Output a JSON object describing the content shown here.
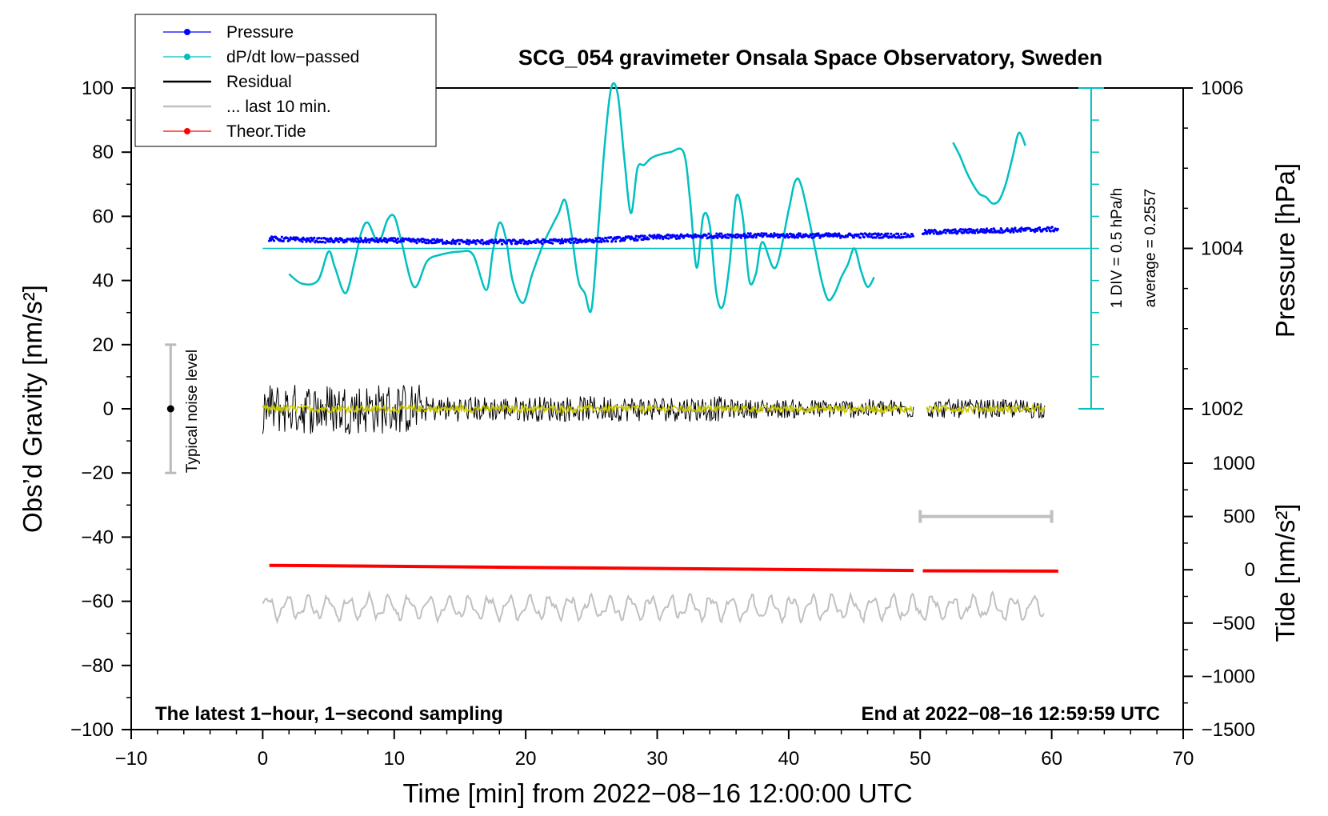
{
  "chart_data": {
    "type": "line",
    "title": "SCG_054 gravimeter Onsala Space Observatory, Sweden",
    "xlabel": "Time [min] from 2022−08−16 12:00:00 UTC",
    "ylabel_left": "Obs’d Gravity [nm/s²]",
    "ylabel_right_pressure": "Pressure [hPa]",
    "ylabel_right_tide": "Tide [nm/s²]",
    "xlim": [
      -10,
      70
    ],
    "ylim": [
      -100,
      100
    ],
    "x_ticks": [
      -10,
      0,
      10,
      20,
      30,
      40,
      50,
      60,
      70
    ],
    "x_tick_labels": [
      "−10",
      "0",
      "10",
      "20",
      "30",
      "40",
      "50",
      "60",
      "70"
    ],
    "y_ticks": [
      -100,
      -80,
      -60,
      -40,
      -20,
      0,
      20,
      40,
      60,
      80,
      100
    ],
    "y_tick_labels": [
      "−100",
      "−80",
      "−60",
      "−40",
      "−20",
      "0",
      "20",
      "40",
      "60",
      "80",
      "100"
    ],
    "pressure_axis": {
      "ticks": [
        1002,
        1004,
        1006
      ],
      "tick_labels": [
        "1002",
        "1004",
        "1006"
      ],
      "gravity_equivalent_per_hpa": 25
    },
    "tide_axis": {
      "ticks": [
        1000,
        500,
        0,
        -500,
        -1000,
        -1500
      ],
      "tick_labels": [
        "1000",
        "500",
        "0",
        "−500",
        "−1000",
        "−1500"
      ],
      "range": [
        -1500,
        1000
      ]
    },
    "legend": [
      {
        "name": "Pressure",
        "color": "#0000ff",
        "style": "line-dot"
      },
      {
        "name": "dP/dt low−passed",
        "color": "#00c0c0",
        "style": "line-dot"
      },
      {
        "name": "Residual",
        "color": "#000000",
        "style": "line"
      },
      {
        "name": "... last 10 min.",
        "color": "#c0c0c0",
        "style": "line"
      },
      {
        "name": "Theor.Tide",
        "color": "#ff0000",
        "style": "line-dot"
      }
    ],
    "series": [
      {
        "name": "dP/dt low−passed",
        "color": "#00c0c0",
        "segments": [
          {
            "x": [
              2,
              3,
              4.2,
              5,
              5.5,
              6.3,
              7,
              7.5,
              8,
              8.8,
              9.5,
              10,
              10.5,
              11.5,
              12.5,
              13.5,
              15,
              16,
              17,
              17.5,
              18,
              18.5,
              19,
              19.8,
              20.5,
              21.3,
              22,
              22.5,
              23,
              23.5,
              24,
              24.5,
              25,
              25.5,
              26,
              26.5,
              27,
              27.5,
              28,
              28.5,
              29,
              29.5,
              30,
              31,
              32,
              32.5,
              33,
              33.5,
              34,
              34.5,
              35,
              35.5,
              36,
              36.5,
              37,
              37.5,
              38,
              39,
              40,
              40.5,
              41,
              42,
              42.5,
              43,
              43.5,
              44,
              44.5,
              45,
              45.5,
              46,
              46.5
            ],
            "y": [
              42,
              39,
              40,
              49,
              44,
              36,
              46,
              55,
              58,
              52,
              59,
              60,
              53,
              38,
              46,
              48,
              49,
              48,
              37,
              49,
              58,
              53,
              40,
              33,
              42,
              51,
              57,
              61,
              65,
              54,
              40,
              36,
              31,
              55,
              82,
              100,
              98,
              78,
              61,
              75,
              76,
              78,
              79,
              80,
              80,
              65,
              44,
              60,
              57,
              36,
              32,
              45,
              66,
              60,
              40,
              42,
              52,
              44,
              62,
              71,
              69,
              50,
              40,
              34,
              36,
              41,
              45,
              50,
              43,
              38,
              41
            ]
          },
          {
            "x": [
              52.5,
              53,
              53.5,
              54,
              54.5,
              55,
              55.5,
              56,
              56.5,
              57,
              57.5,
              58
            ],
            "y": [
              83,
              79,
              74,
              70,
              67,
              66,
              64,
              65,
              70,
              78,
              86,
              82
            ]
          }
        ]
      },
      {
        "name": "Pressure",
        "color": "#0000ff",
        "x": [
          0.5,
          5,
          10,
          15,
          20,
          25,
          30,
          35,
          40,
          45,
          49.5
        ],
        "y": [
          53,
          52.5,
          52.5,
          52,
          52,
          52.5,
          53.5,
          54,
          54,
          54,
          54
        ],
        "x2": [
          50.2,
          55,
          60.5
        ],
        "y2": [
          55,
          55.5,
          56
        ]
      },
      {
        "name": "Residual",
        "color": "#000000",
        "span": [
          0,
          49.5
        ],
        "span2": [
          50.5,
          59.5
        ],
        "noise_amplitude": [
          8,
          4,
          3
        ]
      },
      {
        "name": "Theor.Tide",
        "color": "#ff0000",
        "x": [
          0.5,
          49.5
        ],
        "y": [
          -48.8,
          -50.4
        ],
        "x2": [
          50.2,
          60.5
        ],
        "y2": [
          -50.5,
          -50.6
        ]
      },
      {
        "name": "... last 10 min.",
        "color": "#c0c0c0",
        "span": [
          0,
          59.5
        ],
        "baseline": -62,
        "amplitude": 3
      }
    ],
    "annotations": {
      "left_note": "The latest 1−hour, 1−second sampling",
      "right_note": "End at 2022−08−16 12:59:59 UTC",
      "noise_label": "Typical noise level",
      "noise_bar": {
        "x": -7,
        "y_min": -20,
        "y_max": 20
      },
      "div_label": "1 DIV = 0.5 hPa/h",
      "average_label": "average = 0.2557",
      "scale_bar_x": 63,
      "last10_bar": {
        "x_range": [
          50,
          60
        ],
        "tide_value": 500
      }
    },
    "grid": false
  }
}
